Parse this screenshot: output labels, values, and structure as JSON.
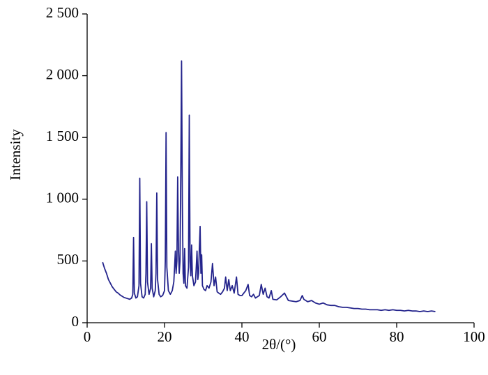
{
  "chart_data": {
    "type": "line",
    "xlabel": "2θ/(°)",
    "ylabel": "Intensity",
    "color": "#24248c",
    "xlim": [
      0,
      100
    ],
    "xticks": [
      0,
      20,
      40,
      60,
      80,
      100
    ],
    "ylim": [
      0,
      2500
    ],
    "yticks": [
      0,
      500,
      {
        "value": 1000,
        "label": "1 000"
      },
      {
        "value": 1500,
        "label": "1 500"
      },
      {
        "value": 2000,
        "label": "2 000"
      },
      {
        "value": 2500,
        "label": "2 500"
      }
    ],
    "x": [
      4,
      4.5,
      5,
      5.5,
      6,
      6.5,
      7,
      7.5,
      8,
      8.5,
      9,
      9.5,
      10,
      10.5,
      11,
      11.5,
      11.8,
      12.0,
      12.2,
      12.6,
      13.0,
      13.4,
      13.6,
      13.8,
      14.2,
      14.6,
      15.0,
      15.2,
      15.4,
      15.6,
      16.0,
      16.4,
      16.6,
      16.8,
      17.2,
      17.6,
      17.8,
      18.0,
      18.2,
      18.6,
      19.0,
      19.5,
      20.0,
      20.2,
      20.4,
      20.6,
      21.0,
      21.5,
      22.0,
      22.4,
      22.6,
      22.8,
      23.0,
      23.2,
      23.4,
      23.6,
      23.8,
      24.0,
      24.2,
      24.4,
      24.6,
      24.8,
      25.0,
      25.2,
      25.4,
      25.8,
      26.2,
      26.4,
      26.6,
      26.8,
      27.0,
      27.2,
      27.6,
      28.0,
      28.2,
      28.4,
      28.6,
      28.8,
      29.0,
      29.2,
      29.4,
      29.6,
      29.8,
      30.2,
      30.6,
      31.0,
      31.5,
      32.0,
      32.4,
      32.8,
      33.2,
      33.6,
      34.0,
      34.5,
      35.0,
      35.5,
      35.8,
      36.2,
      36.6,
      37.0,
      37.5,
      38.0,
      38.6,
      39.0,
      39.5,
      40,
      40.5,
      41,
      41.6,
      42,
      42.5,
      43,
      43.5,
      44,
      44.5,
      45,
      45.5,
      46,
      46.5,
      47,
      47.6,
      48,
      49,
      50,
      51,
      52,
      53,
      54,
      55,
      55.6,
      56,
      57,
      58,
      59,
      60,
      61,
      62,
      63,
      64,
      65,
      66,
      67,
      68,
      69,
      70,
      71,
      72,
      73,
      74,
      75,
      76,
      77,
      78,
      79,
      80,
      81,
      82,
      83,
      84,
      85,
      86,
      87,
      88,
      89,
      90
    ],
    "values": [
      490,
      440,
      400,
      350,
      320,
      290,
      270,
      250,
      240,
      225,
      215,
      205,
      200,
      195,
      190,
      200,
      230,
      690,
      240,
      200,
      210,
      300,
      1170,
      320,
      210,
      200,
      230,
      400,
      980,
      330,
      230,
      280,
      640,
      280,
      210,
      260,
      400,
      1050,
      350,
      230,
      210,
      220,
      260,
      500,
      1540,
      450,
      260,
      230,
      260,
      330,
      450,
      580,
      400,
      500,
      1180,
      600,
      400,
      500,
      1200,
      2120,
      1000,
      400,
      320,
      600,
      300,
      280,
      450,
      1680,
      500,
      380,
      630,
      380,
      300,
      330,
      450,
      580,
      350,
      400,
      600,
      780,
      400,
      550,
      300,
      270,
      260,
      300,
      280,
      330,
      480,
      300,
      370,
      250,
      240,
      230,
      250,
      280,
      370,
      260,
      350,
      260,
      300,
      240,
      370,
      230,
      220,
      220,
      240,
      260,
      310,
      220,
      210,
      230,
      200,
      210,
      220,
      310,
      230,
      280,
      210,
      200,
      260,
      190,
      185,
      210,
      240,
      180,
      175,
      170,
      180,
      220,
      190,
      170,
      180,
      160,
      150,
      160,
      145,
      140,
      140,
      130,
      125,
      125,
      120,
      115,
      115,
      110,
      110,
      105,
      105,
      105,
      100,
      105,
      100,
      105,
      100,
      100,
      95,
      100,
      95,
      95,
      90,
      95,
      90,
      95,
      90
    ]
  }
}
